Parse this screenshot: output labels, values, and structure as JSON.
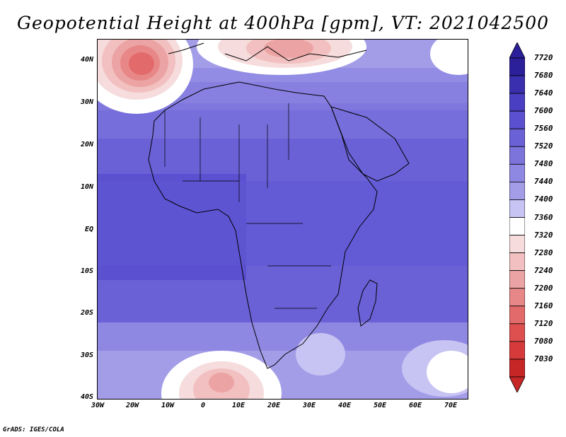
{
  "title": "Geopotential Height at 400hPa [gpm], VT: 2021042500",
  "credit": "GrADS: IGES/COLA",
  "lat_labels": [
    "40N",
    "30N",
    "20N",
    "10N",
    "EQ",
    "10S",
    "20S",
    "30S",
    "40S"
  ],
  "lon_labels": [
    "30W",
    "20W",
    "10W",
    "0",
    "10E",
    "20E",
    "30E",
    "40E",
    "50E",
    "60E",
    "70E"
  ],
  "colorbar": {
    "labels": [
      "7720",
      "7680",
      "7640",
      "7600",
      "7560",
      "7520",
      "7480",
      "7440",
      "7400",
      "7360",
      "7320",
      "7280",
      "7240",
      "7200",
      "7160",
      "7120",
      "7080",
      "7030"
    ],
    "colors": [
      "#2b1f9a",
      "#3a2fae",
      "#4a3fc2",
      "#5a50d0",
      "#6a61d6",
      "#7c74db",
      "#8f88e2",
      "#a39de8",
      "#c7c3f3",
      "#ffffff",
      "#f6dcdc",
      "#f2c0c0",
      "#eca3a3",
      "#e88787",
      "#e36a6a",
      "#de4f4f",
      "#d63a3a",
      "#c62626"
    ]
  },
  "field": {
    "name": "Geopotential Height",
    "level": "400hPa",
    "unit": "gpm",
    "valid_time": "2021042500"
  }
}
